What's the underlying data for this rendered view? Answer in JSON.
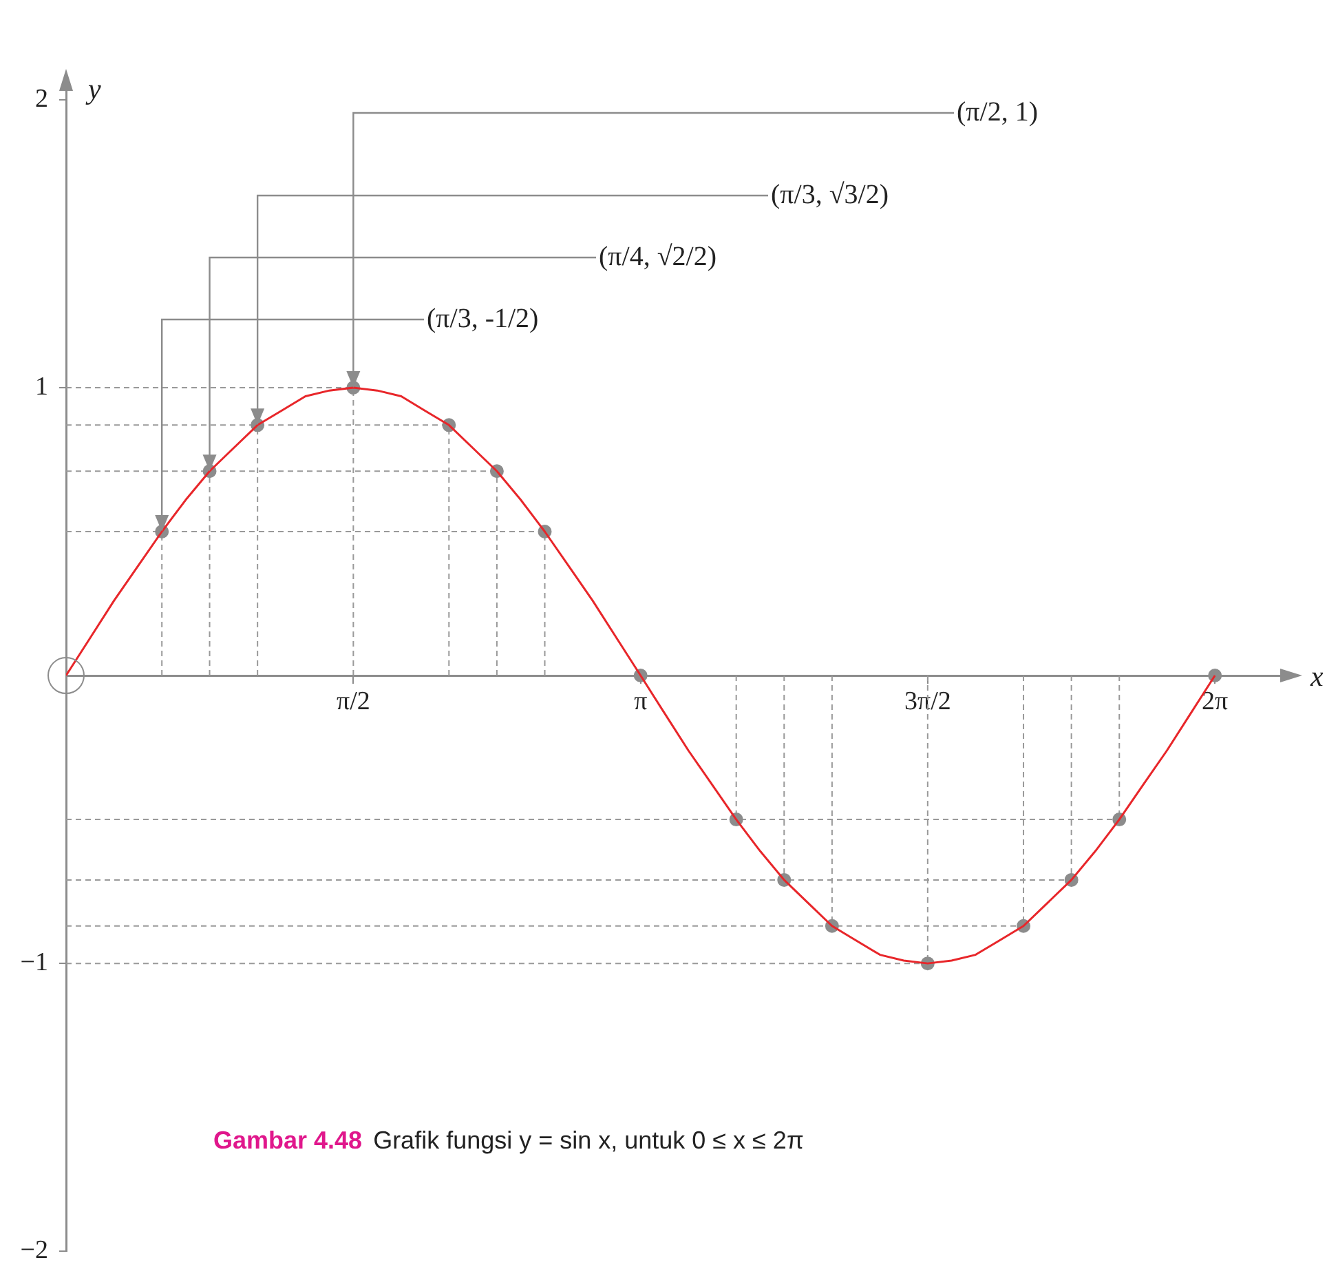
{
  "chart_data": {
    "type": "line",
    "xlabel": "x",
    "ylabel": "y",
    "xlim": [
      0,
      6.67
    ],
    "ylim": [
      -2,
      2.05
    ],
    "xticks": [
      {
        "value": 1.571,
        "label": "π/2"
      },
      {
        "value": 3.142,
        "label": "π"
      },
      {
        "value": 4.712,
        "label": "3π/2"
      },
      {
        "value": 6.283,
        "label": "2π"
      }
    ],
    "yticks": [
      -2,
      -1,
      1,
      2
    ],
    "grid": false,
    "legend": false,
    "series": [
      {
        "type": "line",
        "color": "#e8262a",
        "marker": "none",
        "x": [
          0,
          0.131,
          0.262,
          0.393,
          0.524,
          0.654,
          0.785,
          0.916,
          1.047,
          1.178,
          1.309,
          1.44,
          1.571,
          1.702,
          1.833,
          1.963,
          2.094,
          2.225,
          2.356,
          2.487,
          2.618,
          2.749,
          2.88,
          3.011,
          3.142,
          3.272,
          3.403,
          3.534,
          3.665,
          3.796,
          3.927,
          4.058,
          4.189,
          4.32,
          4.451,
          4.581,
          4.712,
          4.843,
          4.974,
          5.105,
          5.236,
          5.367,
          5.498,
          5.629,
          5.76,
          5.89,
          6.021,
          6.152,
          6.283
        ],
        "values": [
          0,
          0.13,
          0.26,
          0.38,
          0.5,
          0.61,
          0.71,
          0.79,
          0.87,
          0.92,
          0.97,
          0.99,
          1,
          0.99,
          0.97,
          0.92,
          0.87,
          0.79,
          0.71,
          0.61,
          0.5,
          0.38,
          0.26,
          0.13,
          0,
          -0.13,
          -0.26,
          -0.38,
          -0.5,
          -0.61,
          -0.71,
          -0.79,
          -0.87,
          -0.92,
          -0.97,
          -0.99,
          -1,
          -0.99,
          -0.97,
          -0.92,
          -0.87,
          -0.79,
          -0.71,
          -0.61,
          -0.5,
          -0.38,
          -0.26,
          -0.13,
          0
        ]
      },
      {
        "type": "scatter",
        "color": "#8c8c8c",
        "marker": "circle",
        "x": [
          0.524,
          0.785,
          1.047,
          1.571,
          2.094,
          2.356,
          2.618,
          3.142,
          3.665,
          3.927,
          4.189,
          4.712,
          5.236,
          5.498,
          5.76,
          6.283
        ],
        "values": [
          0.5,
          0.71,
          0.87,
          1,
          0.87,
          0.71,
          0.5,
          0,
          -0.5,
          -0.71,
          -0.87,
          -1,
          -0.87,
          -0.71,
          -0.5,
          0
        ]
      }
    ],
    "ref_lines": [
      {
        "axis": "y",
        "value": 1,
        "color": "#999999",
        "line_style": "dashed"
      },
      {
        "axis": "y",
        "value": 0.87,
        "color": "#999999",
        "line_style": "dashed"
      },
      {
        "axis": "y",
        "value": 0.71,
        "color": "#999999",
        "line_style": "dashed"
      },
      {
        "axis": "y",
        "value": 0.5,
        "color": "#999999",
        "line_style": "dashed"
      },
      {
        "axis": "y",
        "value": -0.5,
        "color": "#999999",
        "line_style": "dashed"
      },
      {
        "axis": "y",
        "value": -0.71,
        "color": "#999999",
        "line_style": "dashed"
      },
      {
        "axis": "y",
        "value": -0.87,
        "color": "#999999",
        "line_style": "dashed"
      },
      {
        "axis": "y",
        "value": -1,
        "color": "#999999",
        "line_style": "dashed"
      },
      {
        "axis": "x",
        "value": 0.524,
        "color": "#999999",
        "line_style": "dashed"
      },
      {
        "axis": "x",
        "value": 0.785,
        "color": "#999999",
        "line_style": "dashed"
      },
      {
        "axis": "x",
        "value": 1.047,
        "color": "#999999",
        "line_style": "dashed"
      },
      {
        "axis": "x",
        "value": 1.571,
        "color": "#999999",
        "line_style": "dashed"
      },
      {
        "axis": "x",
        "value": 2.094,
        "color": "#999999",
        "line_style": "dashed"
      },
      {
        "axis": "x",
        "value": 2.356,
        "color": "#999999",
        "line_style": "dashed"
      },
      {
        "axis": "x",
        "value": 2.618,
        "color": "#999999",
        "line_style": "dashed"
      },
      {
        "axis": "x",
        "value": 3.665,
        "color": "#999999",
        "line_style": "dashed"
      },
      {
        "axis": "x",
        "value": 3.927,
        "color": "#999999",
        "line_style": "dashed"
      },
      {
        "axis": "x",
        "value": 4.189,
        "color": "#999999",
        "line_style": "dashed"
      },
      {
        "axis": "x",
        "value": 4.712,
        "color": "#999999",
        "line_style": "dashed"
      },
      {
        "axis": "x",
        "value": 5.236,
        "color": "#999999",
        "line_style": "dashed"
      },
      {
        "axis": "x",
        "value": 5.498,
        "color": "#999999",
        "line_style": "dashed"
      },
      {
        "axis": "x",
        "value": 5.76,
        "color": "#999999",
        "line_style": "dashed"
      }
    ],
    "annotations": [
      {
        "text": "(π/3, -1/2)",
        "x": 0.524,
        "y": 0.5
      },
      {
        "text": "(π/4, √2/2)",
        "x": 0.785,
        "y": 0.71
      },
      {
        "text": "(π/3, √3/2)",
        "x": 1.047,
        "y": 0.87
      },
      {
        "text": "(π/2, 1)",
        "x": 1.571,
        "y": 1
      },
      "Gambar 4.48",
      "Grafik fungsi y = sin x, untuk 0 ≤ x ≤ 2π"
    ]
  }
}
